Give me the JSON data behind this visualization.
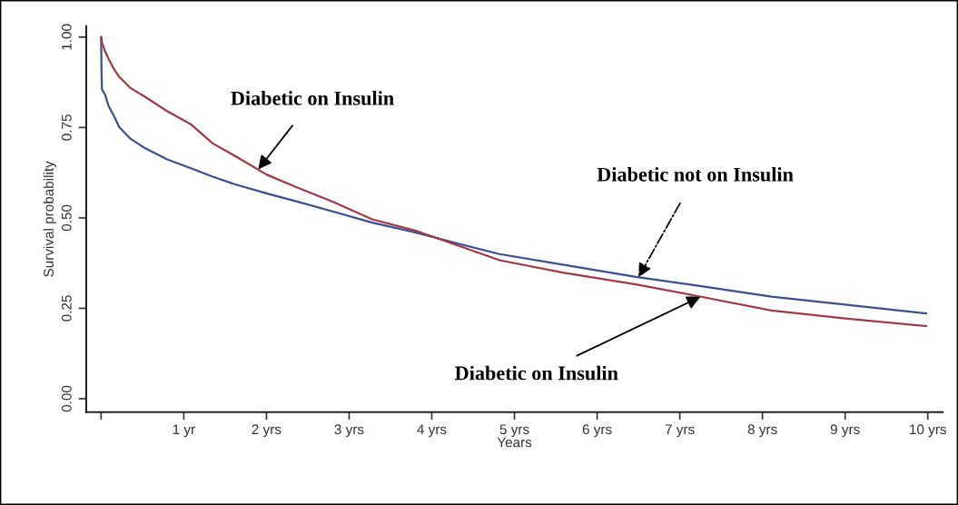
{
  "chart_data": {
    "type": "line",
    "xlabel": "Years",
    "ylabel": "Survival probability",
    "x": [
      0,
      0.005,
      0.01,
      0.05,
      0.09,
      0.16,
      0.22,
      0.35,
      0.53,
      0.8,
      1.08,
      1.35,
      1.63,
      2.0,
      2.36,
      2.8,
      3.28,
      3.8,
      4.3,
      4.82,
      5.6,
      6.47,
      7.3,
      8.11,
      9.0,
      9.98
    ],
    "series": [
      {
        "color": "#3a4f8c",
        "values": [
          1.0,
          0.91,
          0.856,
          0.84,
          0.81,
          0.78,
          0.751,
          0.72,
          0.693,
          0.662,
          0.638,
          0.614,
          0.592,
          0.568,
          0.546,
          0.518,
          0.487,
          0.46,
          0.43,
          0.4,
          0.37,
          0.337,
          0.31,
          0.282,
          0.26,
          0.236
        ]
      },
      {
        "color": "#a03a48",
        "values": [
          1.0,
          0.995,
          0.985,
          0.96,
          0.94,
          0.91,
          0.89,
          0.86,
          0.835,
          0.795,
          0.76,
          0.706,
          0.67,
          0.62,
          0.585,
          0.545,
          0.496,
          0.465,
          0.425,
          0.383,
          0.348,
          0.316,
          0.28,
          0.244,
          0.222,
          0.201
        ]
      }
    ],
    "xlim": [
      -0.18,
      10.18
    ],
    "ylim": [
      -0.037,
      1.03
    ],
    "xticks": [
      {
        "value": 0,
        "label": null
      },
      {
        "value": 1,
        "label": "1 yr"
      },
      {
        "value": 2,
        "label": "2 yrs"
      },
      {
        "value": 3,
        "label": "3 yrs"
      },
      {
        "value": 4,
        "label": "4 yrs"
      },
      {
        "value": 5,
        "label": "5 yrs"
      },
      {
        "value": 6,
        "label": "6 yrs"
      },
      {
        "value": 7,
        "label": "7 yrs"
      },
      {
        "value": 8,
        "label": "8 yrs"
      },
      {
        "value": 9,
        "label": "9 yrs"
      },
      {
        "value": 10,
        "label": "10 yrs"
      }
    ],
    "yticks": [
      {
        "value": 0,
        "label": "0.00"
      },
      {
        "value": 0.25,
        "label": "0.25"
      },
      {
        "value": 0.5,
        "label": "0.50"
      },
      {
        "value": 0.75,
        "label": "0.75"
      },
      {
        "value": 1,
        "label": "1.00"
      }
    ],
    "grid": false,
    "legend": false,
    "annotations": [
      {
        "text": "Diabetic on Insulin",
        "x": 1.9,
        "y": 0.634
      },
      {
        "text": "Diabetic not on Insulin",
        "x": 6.5,
        "y": 0.336
      },
      {
        "text": "Diabetic on Insulin",
        "x": 7.25,
        "y": 0.282
      }
    ]
  }
}
